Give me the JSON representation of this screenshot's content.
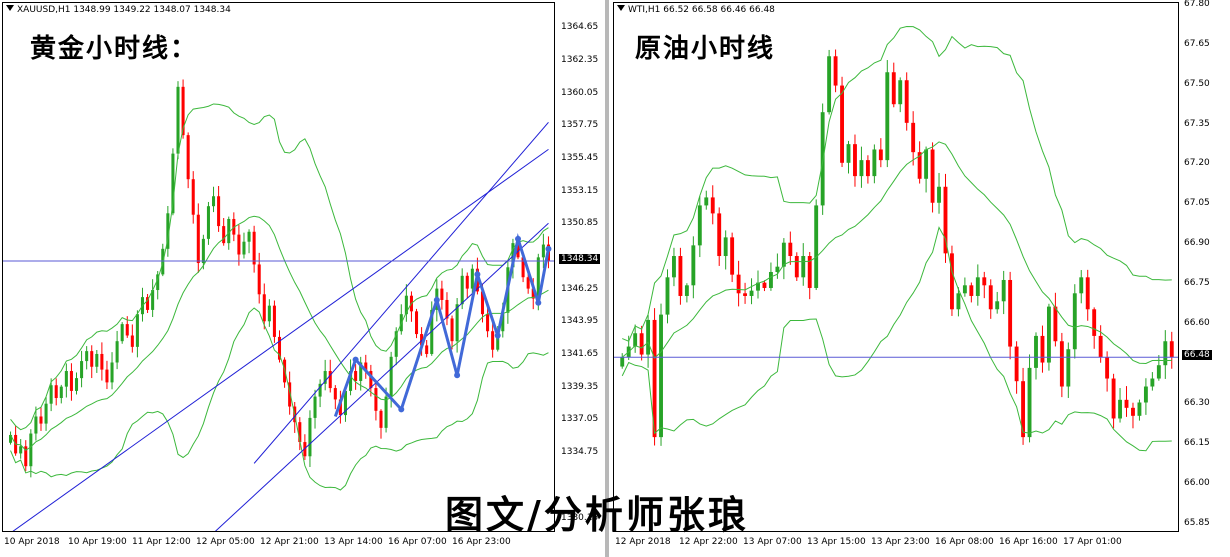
{
  "left_panel": {
    "header": "XAUUSD,H1  1348.99 1349.22 1348.07 1348.34",
    "overlay_title": "黄金小时线：",
    "current_price": "1348.34",
    "colors": {
      "bull": "#27a327",
      "bear": "#ff0000",
      "band": "#3cb83c",
      "channel": "#1f1fd6",
      "arrow": "#4169d8"
    }
  },
  "right_panel": {
    "header": "WTI,H1  66.52 66.58 66.46 66.48",
    "overlay_title": "原油小时线",
    "current_price": "66.48",
    "colors": {
      "bull": "#27a327",
      "bear": "#ff0000",
      "band": "#3cb83c",
      "hline": "#5a5ad6"
    }
  },
  "footer": "图文/分析师张琅",
  "chart_data": [
    {
      "type": "candlestick",
      "title": "XAUUSD,H1",
      "ohlc_last": {
        "open": 1348.99,
        "high": 1349.22,
        "low": 1348.07,
        "close": 1348.34
      },
      "y_ticks": [
        1364.65,
        1362.35,
        1360.05,
        1357.75,
        1355.45,
        1353.15,
        1350.85,
        1348.55,
        1346.25,
        1343.95,
        1341.65,
        1339.35,
        1337.05,
        1334.75,
        1332.45,
        1330.15
      ],
      "y_tick_labels": [
        "1364.65",
        "1362.35",
        "1360.05",
        "1357.75",
        "1355.45",
        "1353.15",
        "1350.85",
        "",
        "1346.25",
        "1343.95",
        "1341.65",
        "1339.35",
        "1337.05",
        "1334.75",
        "",
        "1330.15"
      ],
      "ylim": [
        1329.2,
        1366.5
      ],
      "x_labels": [
        "10 Apr 2018",
        "10 Apr 19:00",
        "11 Apr 12:00",
        "12 Apr 05:00",
        "12 Apr 21:00",
        "13 Apr 14:00",
        "16 Apr 07:00",
        "16 Apr 23:00"
      ],
      "closes": [
        1336.1,
        1334.8,
        1335.3,
        1333.9,
        1336.2,
        1337.4,
        1336.9,
        1338.3,
        1339.6,
        1338.7,
        1339.5,
        1340.6,
        1339.2,
        1340.1,
        1341.3,
        1342.0,
        1340.9,
        1341.8,
        1340.7,
        1339.8,
        1341.2,
        1342.7,
        1343.9,
        1343.1,
        1342.3,
        1344.6,
        1345.8,
        1344.9,
        1346.3,
        1347.4,
        1349.2,
        1351.7,
        1355.9,
        1360.6,
        1357.2,
        1354.1,
        1351.6,
        1348.2,
        1349.9,
        1352.2,
        1352.9,
        1350.8,
        1349.6,
        1351.3,
        1350.2,
        1348.8,
        1349.7,
        1350.4,
        1348.1,
        1346.0,
        1344.1,
        1345.2,
        1343.0,
        1341.4,
        1339.8,
        1338.1,
        1337.0,
        1335.6,
        1334.6,
        1337.3,
        1338.8,
        1339.7,
        1340.6,
        1339.4,
        1338.6,
        1337.5,
        1339.2,
        1340.6,
        1339.9,
        1341.2,
        1340.6,
        1339.4,
        1337.8,
        1336.6,
        1338.8,
        1341.6,
        1343.4,
        1344.6,
        1345.9,
        1344.8,
        1343.2,
        1342.4,
        1341.8,
        1344.9,
        1346.4,
        1345.6,
        1344.3,
        1342.7,
        1345.3,
        1347.3,
        1346.4,
        1347.8,
        1346.2,
        1344.6,
        1343.4,
        1342.1,
        1343.4,
        1344.7,
        1347.9,
        1349.6,
        1348.6,
        1347.2,
        1346.4,
        1345.7,
        1348.6,
        1349.5,
        1348.34
      ],
      "channel_lines": [
        {
          "from": [
            0,
            1329.2
          ],
          "to": [
            106,
            1356.2
          ]
        },
        {
          "from": [
            40,
            1329.2
          ],
          "to": [
            106,
            1351.0
          ]
        },
        {
          "from": [
            48,
            1334.1
          ],
          "to": [
            106,
            1358.1
          ]
        }
      ],
      "current_price_line": 1348.34
    },
    {
      "type": "candlestick",
      "title": "WTI,H1",
      "ohlc_last": {
        "open": 66.52,
        "high": 66.58,
        "low": 66.46,
        "close": 66.48
      },
      "y_ticks": [
        67.8,
        67.65,
        67.5,
        67.35,
        67.2,
        67.05,
        66.9,
        66.75,
        66.6,
        66.45,
        66.3,
        66.15,
        66.0,
        65.85
      ],
      "y_tick_labels": [
        "67.80",
        "67.65",
        "67.50",
        "67.35",
        "67.20",
        "67.05",
        "66.90",
        "66.75",
        "66.60",
        "",
        "66.30",
        "66.15",
        "66.00",
        "65.85"
      ],
      "ylim": [
        65.82,
        67.81
      ],
      "x_labels": [
        "12 Apr 2018",
        "12 Apr 22:00",
        "13 Apr 07:00",
        "13 Apr 15:00",
        "13 Apr 23:00",
        "16 Apr 08:00",
        "16 Apr 16:00",
        "17 Apr 01:00"
      ],
      "closes": [
        66.48,
        66.52,
        66.57,
        66.49,
        66.62,
        66.18,
        66.64,
        66.78,
        66.86,
        66.71,
        66.75,
        66.9,
        67.05,
        67.08,
        67.02,
        66.86,
        66.93,
        66.79,
        66.72,
        66.71,
        66.73,
        66.76,
        66.74,
        66.8,
        66.82,
        66.91,
        66.86,
        66.78,
        66.86,
        66.74,
        67.05,
        67.4,
        67.61,
        67.5,
        67.21,
        67.28,
        67.16,
        67.22,
        67.16,
        67.26,
        67.22,
        67.55,
        67.43,
        67.52,
        67.36,
        67.25,
        67.15,
        67.26,
        67.06,
        67.12,
        66.87,
        66.66,
        66.72,
        66.75,
        66.71,
        66.78,
        66.75,
        66.66,
        66.69,
        66.77,
        66.52,
        66.39,
        66.18,
        66.44,
        66.56,
        66.46,
        66.67,
        66.54,
        66.37,
        66.51,
        66.72,
        66.78,
        66.66,
        66.56,
        66.48,
        66.4,
        66.25,
        66.32,
        66.29,
        66.26,
        66.31,
        66.37,
        66.4,
        66.45,
        66.54,
        66.48
      ]
    }
  ]
}
